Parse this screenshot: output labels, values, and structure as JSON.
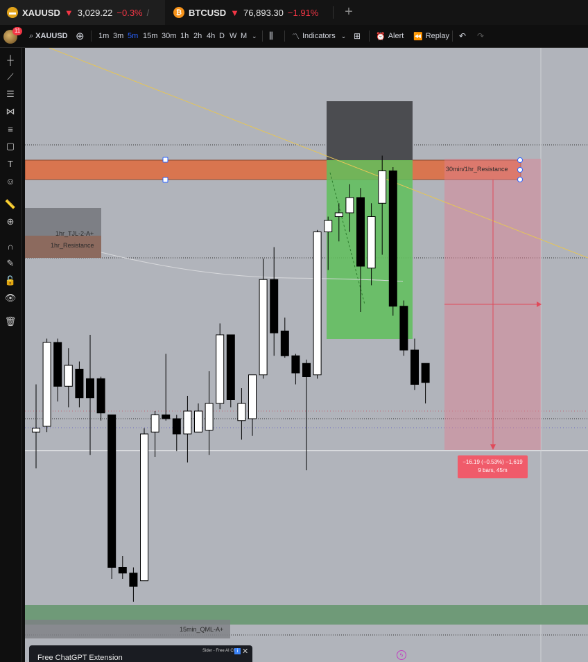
{
  "tabs": [
    {
      "symbol": "XAUUSD",
      "arrow": "▼",
      "price": "3,029.22",
      "change": "−0.3%",
      "extra": "/",
      "active": true
    },
    {
      "symbol": "BTCUSD",
      "arrow": "▼",
      "price": "76,893.30",
      "change": "−1.91%",
      "extra": "",
      "active": false
    }
  ],
  "toolbar": {
    "badge": "11",
    "symbol": "XAUUSD",
    "intervals": [
      "1m",
      "3m",
      "5m",
      "15m",
      "30m",
      "1h",
      "2h",
      "4h",
      "D",
      "W",
      "M"
    ],
    "selected_interval": "5m",
    "indicators": "Indicators",
    "alert": "Alert",
    "replay": "Replay"
  },
  "zones": {
    "resistance_30m_1h": "30min/1hr_Resistance",
    "tjl_1hr": "1hr_TJL-2-A+",
    "resistance_1hr": "1hr_Resistance",
    "qml_15min": "15min_QML-A+"
  },
  "measure": {
    "line1": "−16.19 (−0.53%) −1,619",
    "line2": "9 bars, 45m"
  },
  "ad": {
    "title": "Free ChatGPT Extension",
    "mini": "Sider - Free AI Ch"
  },
  "colors": {
    "chart_bg": "#b1b4bb",
    "resistance_zone": "#e0704a",
    "profit_zone": "#5cb85c",
    "stop_zone": "#555555",
    "measure_zone": "#e88a9a",
    "qml_zone": "#6f9a78"
  },
  "candles": [
    {
      "o": 3025.3,
      "c": 3025.5,
      "h": 3027.8,
      "l": 3023.4
    },
    {
      "o": 3025.6,
      "c": 3030.0,
      "h": 3030.2,
      "l": 3025.3
    },
    {
      "o": 3030.0,
      "c": 3027.7,
      "h": 3030.2,
      "l": 3026.9
    },
    {
      "o": 3027.7,
      "c": 3028.8,
      "h": 3029.7,
      "l": 3026.6
    },
    {
      "o": 3028.6,
      "c": 3027.1,
      "h": 3029.0,
      "l": 3026.6
    },
    {
      "o": 3028.1,
      "c": 3027.1,
      "h": 3030.4,
      "l": 3024.1
    },
    {
      "o": 3028.1,
      "c": 3026.3,
      "h": 3028.2,
      "l": 3025.9
    },
    {
      "o": 3026.2,
      "c": 3018.2,
      "h": 3026.2,
      "l": 3017.6
    },
    {
      "o": 3018.2,
      "c": 3017.9,
      "h": 3018.8,
      "l": 3017.6
    },
    {
      "o": 3017.9,
      "c": 3017.2,
      "h": 3018.2,
      "l": 3016.4
    },
    {
      "o": 3017.5,
      "c": 3025.2,
      "h": 3025.5,
      "l": 3017.5
    },
    {
      "o": 3025.3,
      "c": 3026.2,
      "h": 3026.4,
      "l": 3024.0
    },
    {
      "o": 3026.2,
      "c": 3026.0,
      "h": 3029.4,
      "l": 3025.9
    },
    {
      "o": 3026.0,
      "c": 3025.2,
      "h": 3026.2,
      "l": 3024.3
    },
    {
      "o": 3025.2,
      "c": 3026.4,
      "h": 3027.2,
      "l": 3023.7
    },
    {
      "o": 3025.3,
      "c": 3026.4,
      "h": 3026.8,
      "l": 3025.3
    },
    {
      "o": 3025.4,
      "c": 3026.8,
      "h": 3028.5,
      "l": 3024.1
    },
    {
      "o": 3026.8,
      "c": 3030.4,
      "h": 3031.0,
      "l": 3026.5
    },
    {
      "o": 3030.4,
      "c": 3027.0,
      "h": 3030.4,
      "l": 3026.6
    },
    {
      "o": 3025.9,
      "c": 3026.8,
      "h": 3027.6,
      "l": 3024.9
    },
    {
      "o": 3026.0,
      "c": 3028.3,
      "h": 3028.3,
      "l": 3025.1
    },
    {
      "o": 3028.3,
      "c": 3033.3,
      "h": 3034.4,
      "l": 3028.1
    },
    {
      "o": 3033.3,
      "c": 3030.5,
      "h": 3035.0,
      "l": 3029.3
    },
    {
      "o": 3030.6,
      "c": 3029.3,
      "h": 3031.3,
      "l": 3029.2
    },
    {
      "o": 3029.3,
      "c": 3028.4,
      "h": 3029.4,
      "l": 3027.8
    },
    {
      "o": 3028.9,
      "c": 3028.2,
      "h": 3029.1,
      "l": 3023.3
    },
    {
      "o": 3028.3,
      "c": 3035.8,
      "h": 3035.9,
      "l": 3028.1
    },
    {
      "o": 3035.8,
      "c": 3036.4,
      "h": 3036.6,
      "l": 3033.8
    },
    {
      "o": 3036.6,
      "c": 3036.8,
      "h": 3037.3,
      "l": 3035.3
    },
    {
      "o": 3036.8,
      "c": 3037.6,
      "h": 3038.3,
      "l": 3035.8
    },
    {
      "o": 3037.6,
      "c": 3034.0,
      "h": 3038.1,
      "l": 3031.6
    },
    {
      "o": 3033.9,
      "c": 3036.6,
      "h": 3037.3,
      "l": 3033.0
    },
    {
      "o": 3037.3,
      "c": 3039.0,
      "h": 3039.8,
      "l": 3034.6
    },
    {
      "o": 3039.0,
      "c": 3031.9,
      "h": 3039.2,
      "l": 3031.4
    },
    {
      "o": 3031.9,
      "c": 3029.6,
      "h": 3032.2,
      "l": 3029.3
    },
    {
      "o": 3029.6,
      "c": 3027.8,
      "h": 3030.2,
      "l": 3027.5
    },
    {
      "o": 3028.9,
      "c": 3027.9,
      "h": 3028.9,
      "l": 3026.8
    }
  ]
}
